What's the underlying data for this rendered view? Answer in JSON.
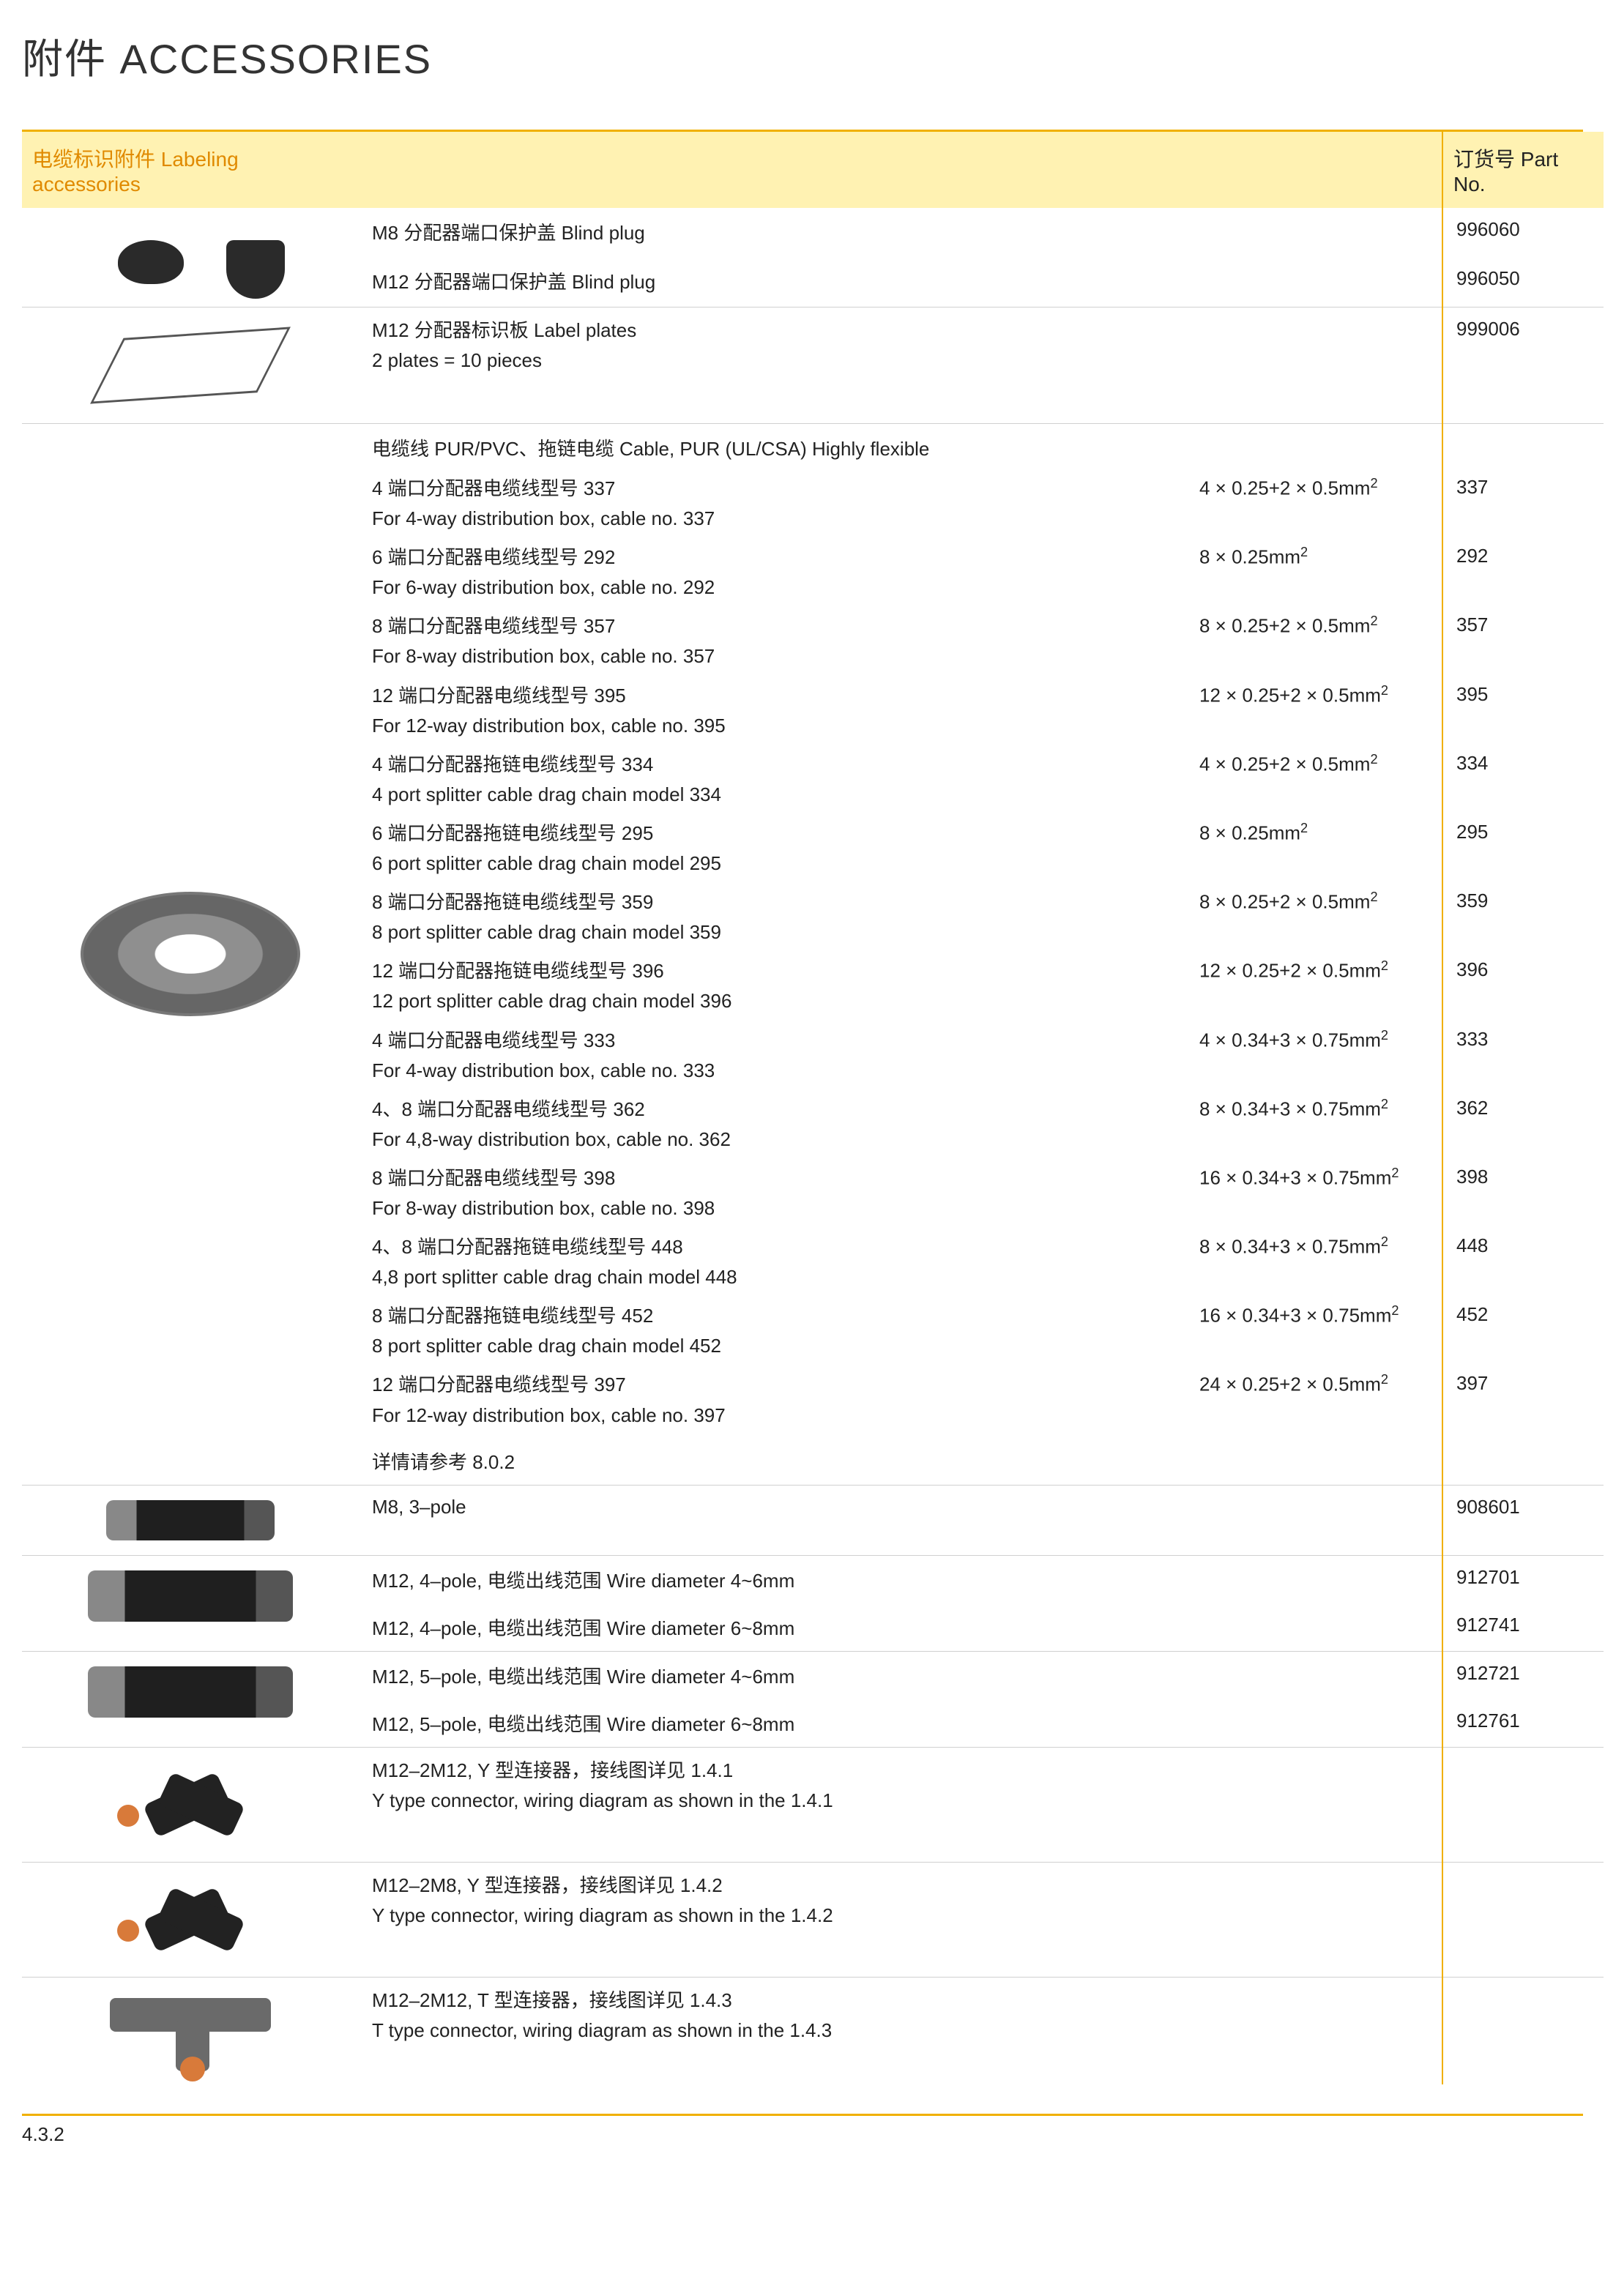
{
  "colors": {
    "accent": "#f0b000",
    "header_bg": "#fff2b2",
    "header_text_accent": "#e08a00",
    "rule_grey": "#d0d0d0",
    "text": "#222222",
    "background": "#ffffff"
  },
  "page_title": "附件 ACCESSORIES",
  "footer": "4.3.2",
  "header": {
    "col1": "电缆标识附件 Labeling accessories",
    "col3": "订货号 Part No."
  },
  "rows": {
    "plugs": {
      "r1": {
        "desc": "M8 分配器端口保护盖  Blind plug",
        "part": "996060"
      },
      "r2": {
        "desc": "M12 分配器端口保护盖  Blind plug",
        "part": "996050"
      }
    },
    "plates": {
      "line1": "M12 分配器标识板  Label plates",
      "line2": "2 plates = 10 pieces",
      "part": "999006"
    },
    "cables": {
      "title": "电缆线 PUR/PVC、拖链电缆  Cable, PUR (UL/CSA) Highly flexible",
      "footer": "详情请参考 8.0.2",
      "items": [
        {
          "l1": "4 端口分配器电缆线型号 337",
          "l2": "For 4-way distribution box, cable no. 337",
          "spec": "4 × 0.25+2 × 0.5mm",
          "part": "337"
        },
        {
          "l1": "6 端口分配器电缆线型号 292",
          "l2": "For 6-way distribution box, cable no. 292",
          "spec": "8 × 0.25mm",
          "part": "292"
        },
        {
          "l1": "8 端口分配器电缆线型号 357",
          "l2": "For 8-way distribution box, cable no. 357",
          "spec": "8 × 0.25+2 × 0.5mm",
          "part": "357"
        },
        {
          "l1": "12 端口分配器电缆线型号 395",
          "l2": "For 12-way distribution box, cable no. 395",
          "spec": "12 × 0.25+2 × 0.5mm",
          "part": "395"
        },
        {
          "l1": "4 端口分配器拖链电缆线型号 334",
          "l2": "4 port splitter cable drag chain model 334",
          "spec": "4 × 0.25+2 × 0.5mm",
          "part": "334"
        },
        {
          "l1": "6 端口分配器拖链电缆线型号 295",
          "l2": "6 port splitter cable drag chain model 295",
          "spec": "8 × 0.25mm",
          "part": "295"
        },
        {
          "l1": "8 端口分配器拖链电缆线型号 359",
          "l2": "8 port splitter cable drag chain model 359",
          "spec": "8 × 0.25+2 × 0.5mm",
          "part": "359"
        },
        {
          "l1": "12 端口分配器拖链电缆线型号 396",
          "l2": "12 port splitter cable drag chain model 396",
          "spec": "12 × 0.25+2 × 0.5mm",
          "part": "396"
        },
        {
          "l1": "4 端口分配器电缆线型号 333",
          "l2": "For 4-way distribution box, cable no. 333",
          "spec": "4 × 0.34+3 × 0.75mm",
          "part": "333"
        },
        {
          "l1": "4、8 端口分配器电缆线型号 362",
          "l2": "For 4,8-way distribution box, cable no. 362",
          "spec": "8 × 0.34+3 × 0.75mm",
          "part": "362"
        },
        {
          "l1": "8 端口分配器电缆线型号 398",
          "l2": "For 8-way distribution box, cable no. 398",
          "spec": "16 × 0.34+3 × 0.75mm",
          "part": "398"
        },
        {
          "l1": "4、8 端口分配器拖链电缆线型号 448",
          "l2": "4,8 port splitter cable drag chain model 448",
          "spec": "8 × 0.34+3 × 0.75mm",
          "part": "448"
        },
        {
          "l1": "8 端口分配器拖链电缆线型号 452",
          "l2": "8 port splitter cable drag chain model 452",
          "spec": "16 × 0.34+3 × 0.75mm",
          "part": "452"
        },
        {
          "l1": "12 端口分配器电缆线型号 397",
          "l2": "For 12-way distribution box, cable no. 397",
          "spec": "24 × 0.25+2 × 0.5mm",
          "part": "397"
        }
      ]
    },
    "m8_3p": {
      "desc": "M8, 3–pole",
      "part": "908601"
    },
    "m12_4p": {
      "r1": {
        "desc": "M12, 4–pole, 电缆出线范围 Wire diameter 4~6mm",
        "part": "912701"
      },
      "r2": {
        "desc": "M12, 4–pole, 电缆出线范围 Wire diameter 6~8mm",
        "part": "912741"
      }
    },
    "m12_5p": {
      "r1": {
        "desc": "M12, 5–pole, 电缆出线范围 Wire diameter 4~6mm",
        "part": "912721"
      },
      "r2": {
        "desc": "M12, 5–pole, 电缆出线范围 Wire diameter 6~8mm",
        "part": "912761"
      }
    },
    "y1": {
      "l1": "M12–2M12, Y 型连接器，接线图详见 1.4.1",
      "l2": "Y type connector, wiring diagram as shown in the 1.4.1"
    },
    "y2": {
      "l1": "M12–2M8, Y 型连接器，接线图详见 1.4.2",
      "l2": "Y type connector, wiring diagram as shown in the 1.4.2"
    },
    "t1": {
      "l1": "M12–2M12, T 型连接器，接线图详见 1.4.3",
      "l2": "T type connector, wiring diagram as shown in the 1.4.3"
    }
  }
}
